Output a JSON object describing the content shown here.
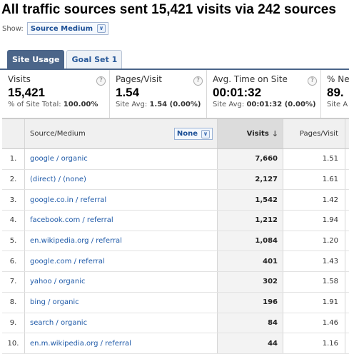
{
  "headline": "All traffic sources sent 15,421 visits via 242 sources",
  "show": {
    "label": "Show:",
    "selected": "Source Medium"
  },
  "tabs": [
    {
      "label": "Site Usage",
      "active": true
    },
    {
      "label": "Goal Set 1",
      "active": false
    }
  ],
  "summary": [
    {
      "label": "Visits",
      "value": "15,421",
      "sub_prefix": "% of Site Total:",
      "sub_value": "100.00%"
    },
    {
      "label": "Pages/Visit",
      "value": "1.54",
      "sub_prefix": "Site Avg:",
      "sub_value": "1.54 (0.00%)"
    },
    {
      "label": "Avg. Time on Site",
      "value": "00:01:32",
      "sub_prefix": "Site Avg:",
      "sub_value": "00:01:32 (0.00%)"
    },
    {
      "label": "% Ne",
      "value": "89.",
      "sub_prefix": "Site A",
      "sub_value": ""
    }
  ],
  "table": {
    "headers": {
      "source": "Source/Medium",
      "secondary": "None",
      "visits": "Visits",
      "pages": "Pages/Visit"
    },
    "rows": [
      {
        "num": "1.",
        "source": "google / organic",
        "visits": "7,660",
        "pages": "1.51"
      },
      {
        "num": "2.",
        "source": "(direct) / (none)",
        "visits": "2,127",
        "pages": "1.61"
      },
      {
        "num": "3.",
        "source": "google.co.in / referral",
        "visits": "1,542",
        "pages": "1.42"
      },
      {
        "num": "4.",
        "source": "facebook.com / referral",
        "visits": "1,212",
        "pages": "1.94"
      },
      {
        "num": "5.",
        "source": "en.wikipedia.org / referral",
        "visits": "1,084",
        "pages": "1.20"
      },
      {
        "num": "6.",
        "source": "google.com / referral",
        "visits": "401",
        "pages": "1.43"
      },
      {
        "num": "7.",
        "source": "yahoo / organic",
        "visits": "302",
        "pages": "1.58"
      },
      {
        "num": "8.",
        "source": "bing / organic",
        "visits": "196",
        "pages": "1.91"
      },
      {
        "num": "9.",
        "source": "search / organic",
        "visits": "84",
        "pages": "1.46"
      },
      {
        "num": "10.",
        "source": "en.m.wikipedia.org / referral",
        "visits": "44",
        "pages": "1.16"
      }
    ]
  },
  "icons": {
    "help": "help-icon",
    "dropdown": "chevron-down-icon",
    "sort": "sort-down-arrow-icon"
  }
}
